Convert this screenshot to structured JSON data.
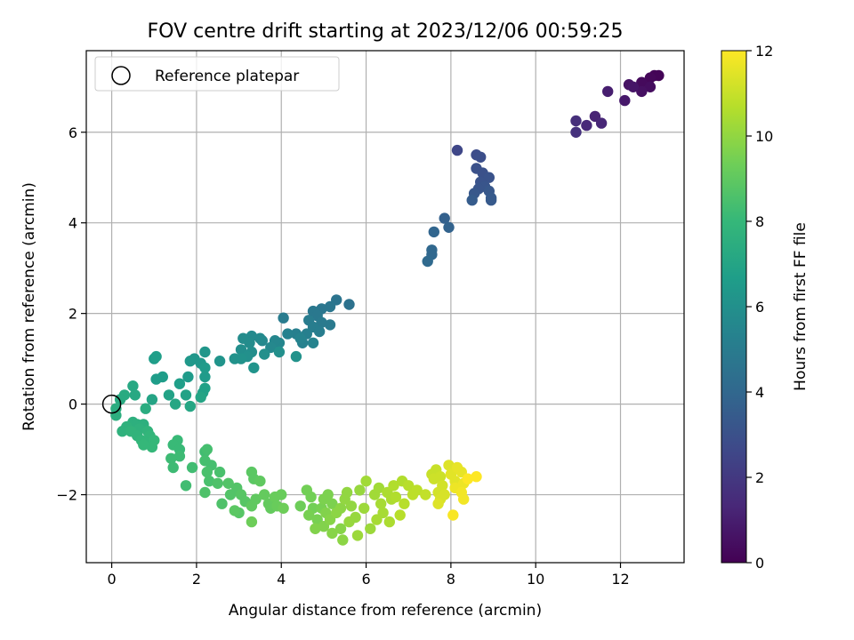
{
  "chart_data": {
    "type": "scatter",
    "title": "FOV centre drift starting at 2023/12/06 00:59:25",
    "xlabel": "Angular distance from reference (arcmin)",
    "ylabel": "Rotation from reference (arcmin)",
    "xlim": [
      -0.6,
      13.5
    ],
    "ylim": [
      -3.5,
      7.8
    ],
    "xticks": [
      0,
      2,
      4,
      6,
      8,
      10,
      12
    ],
    "yticks": [
      -2,
      0,
      2,
      4,
      6
    ],
    "grid": true,
    "legend": {
      "position": "top-left",
      "entries": [
        "Reference platepar"
      ]
    },
    "reference_point": {
      "x": 0,
      "y": 0
    },
    "colorbar": {
      "label": "Hours from first FF file",
      "min": 0,
      "max": 12,
      "ticks": [
        0,
        2,
        4,
        6,
        8,
        10,
        12
      ],
      "colormap": "viridis",
      "stops": [
        "#440154",
        "#482878",
        "#3e4989",
        "#31688e",
        "#26828e",
        "#1f9e89",
        "#35b779",
        "#6ece58",
        "#b5de2b",
        "#fde725"
      ]
    },
    "points": [
      {
        "x": 12.8,
        "y": 7.25,
        "t": 0.1
      },
      {
        "x": 12.9,
        "y": 7.25,
        "t": 0.1
      },
      {
        "x": 12.7,
        "y": 7.2,
        "t": 0.2
      },
      {
        "x": 12.5,
        "y": 7.1,
        "t": 0.3
      },
      {
        "x": 12.7,
        "y": 7.0,
        "t": 0.4
      },
      {
        "x": 12.5,
        "y": 6.9,
        "t": 0.5
      },
      {
        "x": 12.2,
        "y": 7.05,
        "t": 0.6
      },
      {
        "x": 12.3,
        "y": 7.0,
        "t": 0.7
      },
      {
        "x": 12.1,
        "y": 6.7,
        "t": 0.8
      },
      {
        "x": 11.7,
        "y": 6.9,
        "t": 1.0
      },
      {
        "x": 11.4,
        "y": 6.35,
        "t": 1.2
      },
      {
        "x": 11.55,
        "y": 6.2,
        "t": 1.3
      },
      {
        "x": 11.2,
        "y": 6.15,
        "t": 1.4
      },
      {
        "x": 10.95,
        "y": 6.25,
        "t": 1.6
      },
      {
        "x": 10.95,
        "y": 6.0,
        "t": 1.7
      },
      {
        "x": 8.15,
        "y": 5.6,
        "t": 2.6
      },
      {
        "x": 8.6,
        "y": 5.5,
        "t": 2.8
      },
      {
        "x": 8.7,
        "y": 5.45,
        "t": 2.9
      },
      {
        "x": 8.6,
        "y": 5.2,
        "t": 3.0
      },
      {
        "x": 8.75,
        "y": 5.1,
        "t": 3.0
      },
      {
        "x": 8.9,
        "y": 5.0,
        "t": 3.1
      },
      {
        "x": 8.7,
        "y": 4.9,
        "t": 3.1
      },
      {
        "x": 8.8,
        "y": 4.8,
        "t": 3.2
      },
      {
        "x": 8.65,
        "y": 4.75,
        "t": 3.2
      },
      {
        "x": 8.9,
        "y": 4.7,
        "t": 3.3
      },
      {
        "x": 8.55,
        "y": 4.65,
        "t": 3.3
      },
      {
        "x": 8.95,
        "y": 4.55,
        "t": 3.4
      },
      {
        "x": 8.95,
        "y": 4.5,
        "t": 3.4
      },
      {
        "x": 8.5,
        "y": 4.5,
        "t": 3.5
      },
      {
        "x": 7.85,
        "y": 4.1,
        "t": 3.7
      },
      {
        "x": 7.95,
        "y": 3.9,
        "t": 3.8
      },
      {
        "x": 7.6,
        "y": 3.8,
        "t": 3.9
      },
      {
        "x": 7.55,
        "y": 3.4,
        "t": 4.0
      },
      {
        "x": 7.55,
        "y": 3.3,
        "t": 4.0
      },
      {
        "x": 7.45,
        "y": 3.15,
        "t": 4.1
      },
      {
        "x": 5.6,
        "y": 2.2,
        "t": 4.5
      },
      {
        "x": 5.3,
        "y": 2.3,
        "t": 4.6
      },
      {
        "x": 5.15,
        "y": 2.15,
        "t": 4.7
      },
      {
        "x": 4.95,
        "y": 2.1,
        "t": 4.7
      },
      {
        "x": 4.75,
        "y": 2.05,
        "t": 4.8
      },
      {
        "x": 4.85,
        "y": 1.95,
        "t": 4.8
      },
      {
        "x": 4.95,
        "y": 1.8,
        "t": 4.9
      },
      {
        "x": 5.15,
        "y": 1.75,
        "t": 4.9
      },
      {
        "x": 4.65,
        "y": 1.85,
        "t": 5.0
      },
      {
        "x": 4.05,
        "y": 1.9,
        "t": 5.0
      },
      {
        "x": 4.75,
        "y": 1.7,
        "t": 5.1
      },
      {
        "x": 4.9,
        "y": 1.6,
        "t": 5.1
      },
      {
        "x": 4.6,
        "y": 1.55,
        "t": 5.2
      },
      {
        "x": 4.35,
        "y": 1.55,
        "t": 5.2
      },
      {
        "x": 4.15,
        "y": 1.55,
        "t": 5.3
      },
      {
        "x": 4.5,
        "y": 1.35,
        "t": 5.3
      },
      {
        "x": 4.75,
        "y": 1.35,
        "t": 5.4
      },
      {
        "x": 4.45,
        "y": 1.45,
        "t": 5.4
      },
      {
        "x": 3.95,
        "y": 1.35,
        "t": 5.5
      },
      {
        "x": 3.85,
        "y": 1.4,
        "t": 5.5
      },
      {
        "x": 3.75,
        "y": 1.25,
        "t": 5.6
      },
      {
        "x": 3.55,
        "y": 1.4,
        "t": 5.6
      },
      {
        "x": 3.3,
        "y": 1.5,
        "t": 5.7
      },
      {
        "x": 3.5,
        "y": 1.45,
        "t": 5.7
      },
      {
        "x": 3.1,
        "y": 1.45,
        "t": 5.8
      },
      {
        "x": 3.25,
        "y": 1.35,
        "t": 5.8
      },
      {
        "x": 3.05,
        "y": 1.2,
        "t": 5.9
      },
      {
        "x": 3.3,
        "y": 1.15,
        "t": 5.9
      },
      {
        "x": 3.6,
        "y": 1.1,
        "t": 6.0
      },
      {
        "x": 3.95,
        "y": 1.15,
        "t": 6.0
      },
      {
        "x": 3.2,
        "y": 1.05,
        "t": 6.0
      },
      {
        "x": 2.9,
        "y": 1.0,
        "t": 6.1
      },
      {
        "x": 3.05,
        "y": 1.0,
        "t": 6.1
      },
      {
        "x": 4.35,
        "y": 1.05,
        "t": 6.1
      },
      {
        "x": 3.35,
        "y": 0.8,
        "t": 6.2
      },
      {
        "x": 2.55,
        "y": 0.95,
        "t": 6.2
      },
      {
        "x": 2.2,
        "y": 1.15,
        "t": 6.3
      },
      {
        "x": 1.95,
        "y": 1.0,
        "t": 6.3
      },
      {
        "x": 1.85,
        "y": 0.95,
        "t": 6.4
      },
      {
        "x": 2.1,
        "y": 0.9,
        "t": 6.4
      },
      {
        "x": 2.2,
        "y": 0.8,
        "t": 6.5
      },
      {
        "x": 2.2,
        "y": 0.6,
        "t": 6.5
      },
      {
        "x": 1.8,
        "y": 0.6,
        "t": 6.5
      },
      {
        "x": 1.2,
        "y": 0.6,
        "t": 6.6
      },
      {
        "x": 1.05,
        "y": 0.55,
        "t": 6.6
      },
      {
        "x": 1.0,
        "y": 1.0,
        "t": 6.6
      },
      {
        "x": 1.05,
        "y": 1.05,
        "t": 6.7
      },
      {
        "x": 1.6,
        "y": 0.45,
        "t": 6.7
      },
      {
        "x": 2.2,
        "y": 0.35,
        "t": 6.8
      },
      {
        "x": 2.15,
        "y": 0.25,
        "t": 6.8
      },
      {
        "x": 1.75,
        "y": 0.2,
        "t": 6.9
      },
      {
        "x": 1.35,
        "y": 0.2,
        "t": 6.9
      },
      {
        "x": 2.1,
        "y": 0.15,
        "t": 7.0
      },
      {
        "x": 0.95,
        "y": 0.1,
        "t": 7.0
      },
      {
        "x": 1.5,
        "y": 0.0,
        "t": 7.1
      },
      {
        "x": 1.85,
        "y": -0.05,
        "t": 7.1
      },
      {
        "x": 0.5,
        "y": 0.4,
        "t": 7.2
      },
      {
        "x": 0.55,
        "y": 0.2,
        "t": 7.2
      },
      {
        "x": 0.3,
        "y": 0.2,
        "t": 7.3
      },
      {
        "x": 0.2,
        "y": 0.1,
        "t": 7.3
      },
      {
        "x": 0.8,
        "y": -0.1,
        "t": 7.4
      },
      {
        "x": 0.1,
        "y": -0.1,
        "t": 7.4
      },
      {
        "x": 0.1,
        "y": -0.25,
        "t": 7.5
      },
      {
        "x": 0.5,
        "y": -0.4,
        "t": 7.6
      },
      {
        "x": 0.6,
        "y": -0.45,
        "t": 7.6
      },
      {
        "x": 0.75,
        "y": -0.45,
        "t": 7.6
      },
      {
        "x": 0.35,
        "y": -0.5,
        "t": 7.7
      },
      {
        "x": 0.65,
        "y": -0.55,
        "t": 7.7
      },
      {
        "x": 0.25,
        "y": -0.6,
        "t": 7.7
      },
      {
        "x": 0.45,
        "y": -0.6,
        "t": 7.8
      },
      {
        "x": 0.85,
        "y": -0.6,
        "t": 7.8
      },
      {
        "x": 0.6,
        "y": -0.7,
        "t": 7.8
      },
      {
        "x": 0.7,
        "y": -0.8,
        "t": 7.9
      },
      {
        "x": 0.9,
        "y": -0.7,
        "t": 7.9
      },
      {
        "x": 0.8,
        "y": -0.85,
        "t": 7.9
      },
      {
        "x": 1.0,
        "y": -0.8,
        "t": 8.0
      },
      {
        "x": 0.95,
        "y": -0.95,
        "t": 8.0
      },
      {
        "x": 0.75,
        "y": -0.9,
        "t": 8.0
      },
      {
        "x": 1.55,
        "y": -0.8,
        "t": 8.1
      },
      {
        "x": 1.45,
        "y": -0.9,
        "t": 8.1
      },
      {
        "x": 1.6,
        "y": -1.0,
        "t": 8.1
      },
      {
        "x": 1.4,
        "y": -1.2,
        "t": 8.2
      },
      {
        "x": 1.6,
        "y": -1.15,
        "t": 8.2
      },
      {
        "x": 1.45,
        "y": -1.4,
        "t": 8.2
      },
      {
        "x": 1.9,
        "y": -1.4,
        "t": 8.3
      },
      {
        "x": 1.75,
        "y": -1.8,
        "t": 8.3
      },
      {
        "x": 2.2,
        "y": -1.05,
        "t": 8.3
      },
      {
        "x": 2.25,
        "y": -1.0,
        "t": 8.4
      },
      {
        "x": 2.2,
        "y": -1.25,
        "t": 8.4
      },
      {
        "x": 2.35,
        "y": -1.35,
        "t": 8.4
      },
      {
        "x": 2.25,
        "y": -1.5,
        "t": 8.5
      },
      {
        "x": 2.3,
        "y": -1.7,
        "t": 8.5
      },
      {
        "x": 2.55,
        "y": -1.5,
        "t": 8.5
      },
      {
        "x": 2.5,
        "y": -1.75,
        "t": 8.6
      },
      {
        "x": 2.2,
        "y": -1.95,
        "t": 8.6
      },
      {
        "x": 2.6,
        "y": -2.2,
        "t": 8.6
      },
      {
        "x": 2.75,
        "y": -1.75,
        "t": 8.7
      },
      {
        "x": 2.8,
        "y": -2.0,
        "t": 8.7
      },
      {
        "x": 2.95,
        "y": -1.85,
        "t": 8.7
      },
      {
        "x": 3.05,
        "y": -2.0,
        "t": 8.8
      },
      {
        "x": 3.15,
        "y": -2.15,
        "t": 8.8
      },
      {
        "x": 3.0,
        "y": -2.4,
        "t": 8.8
      },
      {
        "x": 2.9,
        "y": -2.35,
        "t": 8.9
      },
      {
        "x": 3.3,
        "y": -1.5,
        "t": 8.9
      },
      {
        "x": 3.35,
        "y": -1.65,
        "t": 8.9
      },
      {
        "x": 3.5,
        "y": -1.7,
        "t": 9.0
      },
      {
        "x": 3.4,
        "y": -2.1,
        "t": 9.0
      },
      {
        "x": 3.3,
        "y": -2.25,
        "t": 9.0
      },
      {
        "x": 3.6,
        "y": -2.0,
        "t": 9.1
      },
      {
        "x": 3.7,
        "y": -2.2,
        "t": 9.1
      },
      {
        "x": 3.75,
        "y": -2.3,
        "t": 9.1
      },
      {
        "x": 3.85,
        "y": -2.05,
        "t": 9.2
      },
      {
        "x": 3.9,
        "y": -2.25,
        "t": 9.2
      },
      {
        "x": 4.0,
        "y": -2.0,
        "t": 9.2
      },
      {
        "x": 4.05,
        "y": -2.3,
        "t": 9.3
      },
      {
        "x": 3.3,
        "y": -2.6,
        "t": 9.3
      },
      {
        "x": 4.45,
        "y": -2.25,
        "t": 9.3
      },
      {
        "x": 4.6,
        "y": -1.9,
        "t": 9.4
      },
      {
        "x": 4.7,
        "y": -2.05,
        "t": 9.4
      },
      {
        "x": 4.75,
        "y": -2.3,
        "t": 9.4
      },
      {
        "x": 4.65,
        "y": -2.45,
        "t": 9.5
      },
      {
        "x": 4.85,
        "y": -2.55,
        "t": 9.5
      },
      {
        "x": 4.95,
        "y": -2.3,
        "t": 9.5
      },
      {
        "x": 5.0,
        "y": -2.1,
        "t": 9.6
      },
      {
        "x": 5.1,
        "y": -2.0,
        "t": 9.6
      },
      {
        "x": 5.2,
        "y": -2.2,
        "t": 9.6
      },
      {
        "x": 5.05,
        "y": -2.4,
        "t": 9.7
      },
      {
        "x": 4.8,
        "y": -2.75,
        "t": 9.7
      },
      {
        "x": 5.0,
        "y": -2.7,
        "t": 9.7
      },
      {
        "x": 5.15,
        "y": -2.55,
        "t": 9.8
      },
      {
        "x": 5.2,
        "y": -2.85,
        "t": 9.8
      },
      {
        "x": 5.4,
        "y": -2.75,
        "t": 9.8
      },
      {
        "x": 5.45,
        "y": -3.0,
        "t": 9.9
      },
      {
        "x": 5.3,
        "y": -2.4,
        "t": 9.9
      },
      {
        "x": 5.4,
        "y": -2.3,
        "t": 9.9
      },
      {
        "x": 5.5,
        "y": -2.1,
        "t": 10.0
      },
      {
        "x": 5.55,
        "y": -1.95,
        "t": 10.0
      },
      {
        "x": 5.65,
        "y": -2.25,
        "t": 10.0
      },
      {
        "x": 5.75,
        "y": -2.5,
        "t": 10.1
      },
      {
        "x": 5.6,
        "y": -2.6,
        "t": 10.1
      },
      {
        "x": 5.85,
        "y": -1.9,
        "t": 10.1
      },
      {
        "x": 5.95,
        "y": -2.3,
        "t": 10.2
      },
      {
        "x": 5.8,
        "y": -2.9,
        "t": 10.2
      },
      {
        "x": 6.1,
        "y": -2.75,
        "t": 10.2
      },
      {
        "x": 6.0,
        "y": -1.7,
        "t": 10.3
      },
      {
        "x": 6.2,
        "y": -2.0,
        "t": 10.3
      },
      {
        "x": 6.3,
        "y": -1.85,
        "t": 10.3
      },
      {
        "x": 6.35,
        "y": -2.2,
        "t": 10.4
      },
      {
        "x": 6.25,
        "y": -2.55,
        "t": 10.4
      },
      {
        "x": 6.4,
        "y": -2.4,
        "t": 10.4
      },
      {
        "x": 6.55,
        "y": -2.6,
        "t": 10.5
      },
      {
        "x": 6.6,
        "y": -2.1,
        "t": 10.5
      },
      {
        "x": 6.5,
        "y": -1.95,
        "t": 10.5
      },
      {
        "x": 6.65,
        "y": -1.8,
        "t": 10.6
      },
      {
        "x": 6.7,
        "y": -2.05,
        "t": 10.6
      },
      {
        "x": 6.85,
        "y": -1.7,
        "t": 10.6
      },
      {
        "x": 6.8,
        "y": -2.45,
        "t": 10.7
      },
      {
        "x": 6.9,
        "y": -2.2,
        "t": 10.7
      },
      {
        "x": 7.0,
        "y": -1.8,
        "t": 10.7
      },
      {
        "x": 7.1,
        "y": -2.0,
        "t": 10.8
      },
      {
        "x": 7.2,
        "y": -1.9,
        "t": 10.8
      },
      {
        "x": 7.4,
        "y": -2.0,
        "t": 10.9
      },
      {
        "x": 7.55,
        "y": -1.55,
        "t": 11.0
      },
      {
        "x": 7.65,
        "y": -1.45,
        "t": 11.0
      },
      {
        "x": 7.6,
        "y": -1.65,
        "t": 11.1
      },
      {
        "x": 7.75,
        "y": -1.6,
        "t": 11.1
      },
      {
        "x": 7.8,
        "y": -1.8,
        "t": 11.2
      },
      {
        "x": 7.7,
        "y": -1.95,
        "t": 11.2
      },
      {
        "x": 7.75,
        "y": -2.1,
        "t": 11.3
      },
      {
        "x": 7.85,
        "y": -2.0,
        "t": 11.3
      },
      {
        "x": 7.7,
        "y": -2.2,
        "t": 11.4
      },
      {
        "x": 7.95,
        "y": -1.35,
        "t": 11.4
      },
      {
        "x": 8.0,
        "y": -1.55,
        "t": 11.5
      },
      {
        "x": 8.1,
        "y": -1.7,
        "t": 11.5
      },
      {
        "x": 8.15,
        "y": -1.4,
        "t": 11.6
      },
      {
        "x": 8.25,
        "y": -1.5,
        "t": 11.6
      },
      {
        "x": 8.3,
        "y": -1.75,
        "t": 11.7
      },
      {
        "x": 8.1,
        "y": -1.85,
        "t": 11.7
      },
      {
        "x": 8.25,
        "y": -1.95,
        "t": 11.8
      },
      {
        "x": 8.3,
        "y": -2.1,
        "t": 11.8
      },
      {
        "x": 8.05,
        "y": -2.45,
        "t": 11.9
      },
      {
        "x": 8.6,
        "y": -1.6,
        "t": 12.0
      },
      {
        "x": 8.4,
        "y": -1.65,
        "t": 12.0
      }
    ]
  }
}
